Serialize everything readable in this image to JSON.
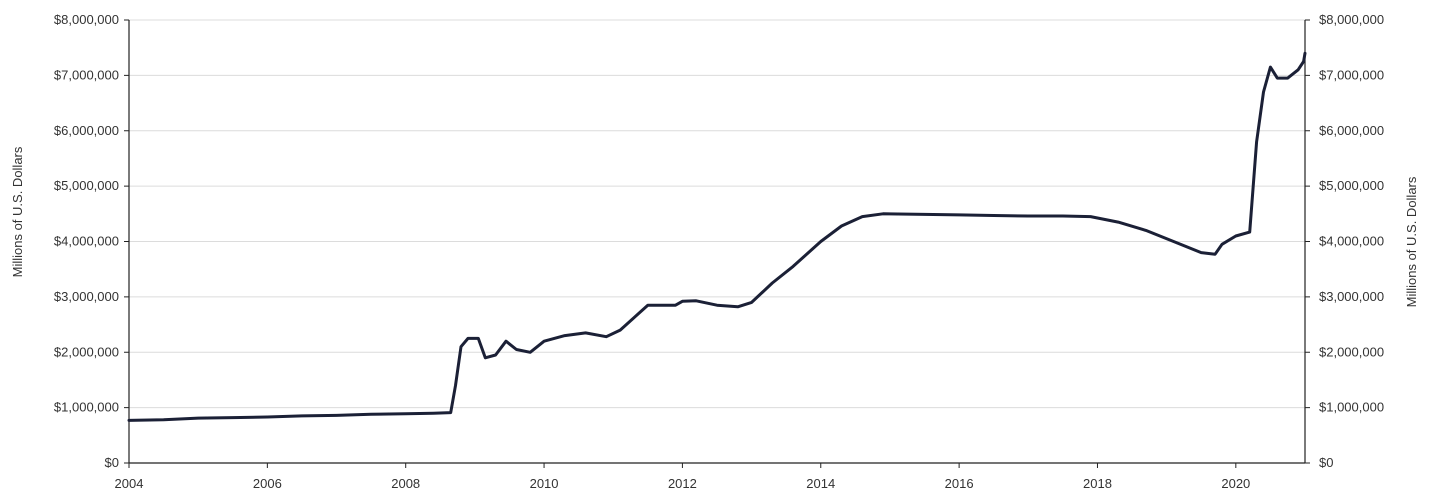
{
  "chart_data": {
    "type": "line",
    "xlabel": "",
    "ylabel_left": "Millions of U.S. Dollars",
    "ylabel_right": "Millions of U.S. Dollars",
    "xlim": [
      2004,
      2021
    ],
    "ylim": [
      0,
      8000000
    ],
    "y_ticks": [
      0,
      1000000,
      2000000,
      3000000,
      4000000,
      5000000,
      6000000,
      7000000,
      8000000
    ],
    "y_tick_labels": [
      "$0",
      "$1,000,000",
      "$2,000,000",
      "$3,000,000",
      "$4,000,000",
      "$5,000,000",
      "$6,000,000",
      "$7,000,000",
      "$8,000,000"
    ],
    "x_ticks": [
      2004,
      2006,
      2008,
      2010,
      2012,
      2014,
      2016,
      2018,
      2020
    ],
    "x_tick_labels": [
      "2004",
      "2006",
      "2008",
      "2010",
      "2012",
      "2014",
      "2016",
      "2018",
      "2020"
    ],
    "grid": "horizontal",
    "line_color": "#1b2036",
    "series": [
      {
        "values": [
          [
            2004.0,
            770000
          ],
          [
            2004.5,
            780000
          ],
          [
            2005.0,
            810000
          ],
          [
            2005.5,
            820000
          ],
          [
            2006.0,
            830000
          ],
          [
            2006.5,
            850000
          ],
          [
            2007.0,
            860000
          ],
          [
            2007.5,
            880000
          ],
          [
            2008.0,
            890000
          ],
          [
            2008.4,
            900000
          ],
          [
            2008.65,
            910000
          ],
          [
            2008.72,
            1400000
          ],
          [
            2008.8,
            2100000
          ],
          [
            2008.9,
            2250000
          ],
          [
            2009.05,
            2250000
          ],
          [
            2009.15,
            1900000
          ],
          [
            2009.3,
            1950000
          ],
          [
            2009.45,
            2200000
          ],
          [
            2009.6,
            2050000
          ],
          [
            2009.8,
            2000000
          ],
          [
            2010.0,
            2200000
          ],
          [
            2010.3,
            2300000
          ],
          [
            2010.6,
            2350000
          ],
          [
            2010.9,
            2280000
          ],
          [
            2011.1,
            2400000
          ],
          [
            2011.5,
            2850000
          ],
          [
            2011.9,
            2850000
          ],
          [
            2012.0,
            2920000
          ],
          [
            2012.2,
            2930000
          ],
          [
            2012.5,
            2850000
          ],
          [
            2012.8,
            2820000
          ],
          [
            2013.0,
            2900000
          ],
          [
            2013.3,
            3250000
          ],
          [
            2013.6,
            3550000
          ],
          [
            2014.0,
            4000000
          ],
          [
            2014.3,
            4280000
          ],
          [
            2014.6,
            4450000
          ],
          [
            2014.9,
            4500000
          ],
          [
            2015.5,
            4490000
          ],
          [
            2016.0,
            4480000
          ],
          [
            2016.5,
            4470000
          ],
          [
            2017.0,
            4460000
          ],
          [
            2017.5,
            4460000
          ],
          [
            2017.9,
            4450000
          ],
          [
            2018.3,
            4350000
          ],
          [
            2018.7,
            4200000
          ],
          [
            2019.1,
            4000000
          ],
          [
            2019.5,
            3800000
          ],
          [
            2019.7,
            3770000
          ],
          [
            2019.8,
            3950000
          ],
          [
            2020.0,
            4100000
          ],
          [
            2020.2,
            4170000
          ],
          [
            2020.3,
            5800000
          ],
          [
            2020.4,
            6700000
          ],
          [
            2020.5,
            7150000
          ],
          [
            2020.6,
            6950000
          ],
          [
            2020.75,
            6950000
          ],
          [
            2020.9,
            7100000
          ],
          [
            2020.98,
            7250000
          ],
          [
            2021.0,
            7400000
          ]
        ]
      }
    ]
  }
}
